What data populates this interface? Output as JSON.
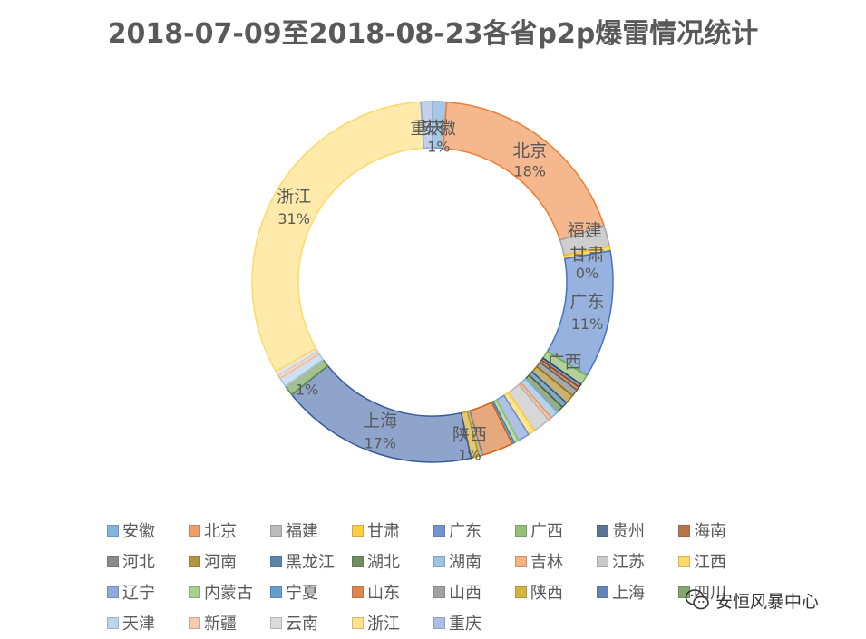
{
  "chart_data": {
    "type": "donut",
    "title": "2018-07-09至2018-08-23各省p2p爆雷情况统计",
    "legend_position": "bottom",
    "categories": [
      "安徽",
      "北京",
      "福建",
      "甘肃",
      "广东",
      "广西",
      "贵州",
      "海南",
      "河北",
      "河南",
      "黑龙江",
      "湖北",
      "湖南",
      "吉林",
      "江苏",
      "江西",
      "辽宁",
      "内蒙古",
      "宁夏",
      "山东",
      "山西",
      "陕西",
      "上海",
      "四川",
      "天津",
      "新疆",
      "云南",
      "浙江",
      "重庆"
    ],
    "values": [
      1.2,
      18,
      1.8,
      0.4,
      11,
      0.9,
      0.3,
      0.3,
      0.6,
      0.8,
      0.5,
      0.6,
      0.7,
      0.3,
      1.5,
      0.6,
      1.0,
      0.4,
      0.2,
      2.7,
      0.3,
      0.7,
      17,
      0.9,
      0.8,
      0.3,
      0.4,
      31,
      1.0
    ],
    "colors": [
      "#5B9BD5",
      "#ED7D31",
      "#A5A5A5",
      "#FFC000",
      "#4472C4",
      "#70AD47",
      "#264478",
      "#9E480E",
      "#636363",
      "#997300",
      "#255E91",
      "#43682B",
      "#7CAFDD",
      "#F1975A",
      "#B7B7B7",
      "#FFCD33",
      "#698ED0",
      "#8CC168",
      "#327DC2",
      "#D26012",
      "#848484",
      "#CC9A00",
      "#335AA1",
      "#5A8A39",
      "#A3C7E8",
      "#F6B995",
      "#CFCFCF",
      "#FFD966",
      "#8FAADC"
    ]
  },
  "labels": {
    "北京": "北京",
    "北京_pct": "18%",
    "福建": "福建",
    "甘肃": "甘肃",
    "甘肃_pct": "0%",
    "广东": "广东",
    "广东_pct": "11%",
    "上海": "上海",
    "上海_pct": "17%",
    "浙江": "浙江",
    "浙江_pct": "31%",
    "四川_pct": "1%",
    "top_a": "重庆",
    "top_b": "安徽",
    "top_pct": "1%",
    "shanxi": "陕西",
    "shanxi_pct": "1%",
    "guangxi": "广西"
  },
  "watermark": {
    "text": "安恒风暴中心",
    "icon": "wechat-icon"
  }
}
